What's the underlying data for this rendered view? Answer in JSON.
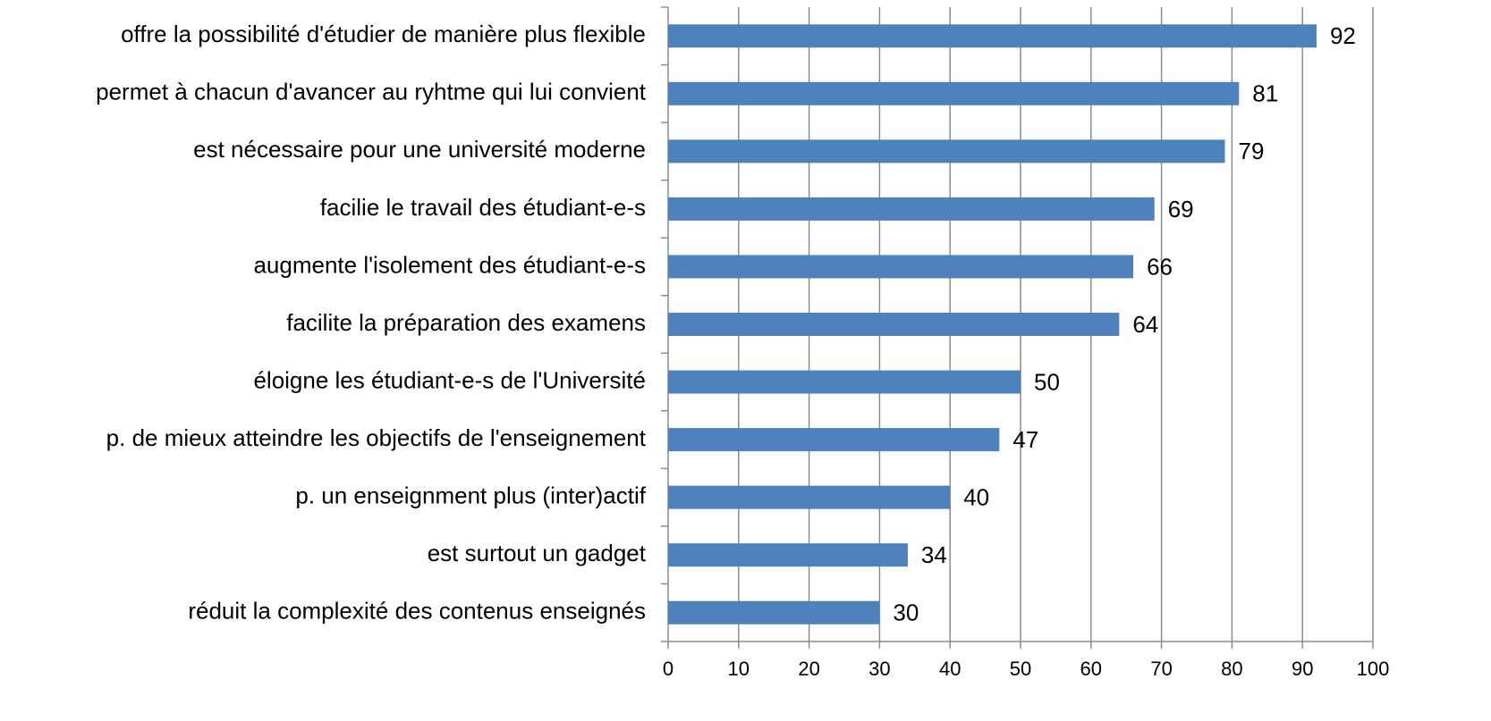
{
  "chart_data": {
    "type": "barh",
    "categories": [
      "offre la possibilité d'étudier de manière plus flexible",
      "permet à chacun d'avancer au ryhtme qui lui convient",
      "est nécessaire pour une université moderne",
      "facilie le travail des étudiant-e-s",
      "augmente l'isolement des étudiant-e-s",
      "facilite la préparation des examens",
      "éloigne les étudiant-e-s de l'Université",
      "p. de mieux atteindre les objectifs de l'enseignement",
      "p. un enseignment plus (inter)actif",
      "est surtout un gadget",
      "réduit la complexité des contenus enseignés"
    ],
    "values": [
      92,
      81,
      79,
      69,
      66,
      64,
      50,
      47,
      40,
      34,
      30
    ],
    "color": "#4f81bd",
    "xlim": [
      0,
      100
    ],
    "xticks": [
      0,
      10,
      20,
      30,
      40,
      50,
      60,
      70,
      80,
      90,
      100
    ],
    "grid": true
  }
}
